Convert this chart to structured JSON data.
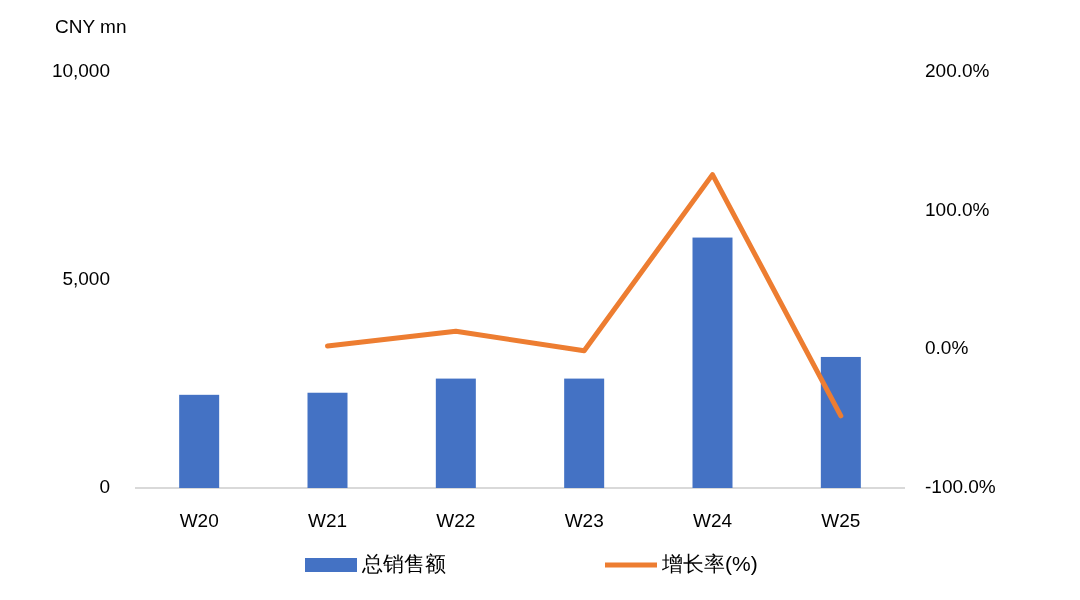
{
  "chart_data": {
    "type": "bar",
    "ylabel": "CNY mn",
    "categories": [
      "W20",
      "W21",
      "W22",
      "W23",
      "W24",
      "W25"
    ],
    "series": [
      {
        "name": "总销售额",
        "color": "#4472c4",
        "values": [
          2240,
          2290,
          2630,
          2630,
          6020,
          3150
        ]
      },
      {
        "name": "增长率(%)",
        "type": "line",
        "axis": "y2",
        "color": "#ed7d31",
        "values": [
          null,
          2.4,
          13,
          -1,
          126,
          -48
        ]
      }
    ],
    "ylim": [
      0,
      10000
    ],
    "yticks": [
      {
        "value": 0,
        "label": "0"
      },
      {
        "value": 5000,
        "label": "5,000"
      },
      {
        "value": 10000,
        "label": "10,000"
      }
    ],
    "y2lim": [
      -100,
      200
    ],
    "y2ticks": [
      {
        "value": -100,
        "label": "-100.0%"
      },
      {
        "value": 0,
        "label": "0.0%"
      },
      {
        "value": 100,
        "label": "100.0%"
      },
      {
        "value": 200,
        "label": "200.0%"
      }
    ],
    "legend": "bottom",
    "grid": false
  }
}
